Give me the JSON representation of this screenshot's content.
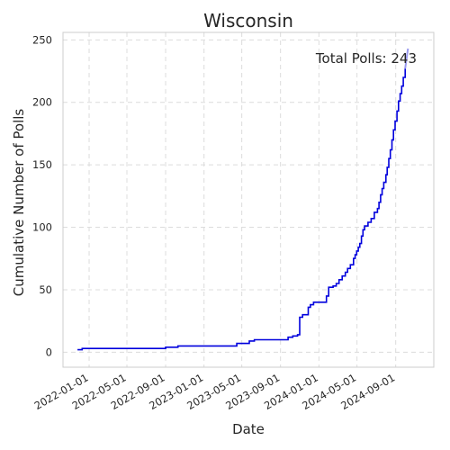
{
  "chart_data": {
    "type": "line",
    "title": "Wisconsin",
    "xlabel": "Date",
    "ylabel": "Cumulative Number of Polls",
    "annotation": "Total Polls: 243",
    "xlim": [
      "2021-10-10",
      "2024-12-31"
    ],
    "ylim": [
      -12,
      256
    ],
    "x_ticks": [
      "2022-01-01",
      "2022-05-01",
      "2022-09-01",
      "2023-01-01",
      "2023-05-01",
      "2023-09-01",
      "2024-01-01",
      "2024-05-01",
      "2024-09-01"
    ],
    "y_ticks": [
      0,
      50,
      100,
      150,
      200,
      250
    ],
    "grid": true,
    "line_color": "#0000dd",
    "tail_color": "#9999ee",
    "series": [
      {
        "points": [
          [
            "2021-11-25",
            2
          ],
          [
            "2021-12-10",
            3
          ],
          [
            "2022-08-10",
            3
          ],
          [
            "2022-09-01",
            4
          ],
          [
            "2022-10-05",
            4
          ],
          [
            "2022-10-10",
            5
          ],
          [
            "2023-04-10",
            5
          ],
          [
            "2023-04-15",
            7
          ],
          [
            "2023-05-20",
            7
          ],
          [
            "2023-05-25",
            9
          ],
          [
            "2023-06-10",
            10
          ],
          [
            "2023-09-20",
            10
          ],
          [
            "2023-09-25",
            12
          ],
          [
            "2023-10-10",
            13
          ],
          [
            "2023-10-25",
            14
          ],
          [
            "2023-11-01",
            28
          ],
          [
            "2023-11-10",
            30
          ],
          [
            "2023-11-28",
            36
          ],
          [
            "2023-12-05",
            38
          ],
          [
            "2023-12-15",
            40
          ],
          [
            "2024-01-05",
            40
          ],
          [
            "2024-01-15",
            40
          ],
          [
            "2024-01-25",
            45
          ],
          [
            "2024-02-01",
            52
          ],
          [
            "2024-02-15",
            53
          ],
          [
            "2024-02-25",
            55
          ],
          [
            "2024-03-05",
            58
          ],
          [
            "2024-03-15",
            61
          ],
          [
            "2024-03-25",
            64
          ],
          [
            "2024-04-01",
            67
          ],
          [
            "2024-04-10",
            70
          ],
          [
            "2024-04-20",
            75
          ],
          [
            "2024-04-25",
            78
          ],
          [
            "2024-04-30",
            81
          ],
          [
            "2024-05-05",
            84
          ],
          [
            "2024-05-10",
            87
          ],
          [
            "2024-05-15",
            93
          ],
          [
            "2024-05-20",
            98
          ],
          [
            "2024-05-25",
            101
          ],
          [
            "2024-06-05",
            104
          ],
          [
            "2024-06-15",
            107
          ],
          [
            "2024-06-25",
            112
          ],
          [
            "2024-07-05",
            115
          ],
          [
            "2024-07-10",
            120
          ],
          [
            "2024-07-15",
            126
          ],
          [
            "2024-07-20",
            131
          ],
          [
            "2024-07-25",
            136
          ],
          [
            "2024-08-01",
            142
          ],
          [
            "2024-08-05",
            148
          ],
          [
            "2024-08-10",
            155
          ],
          [
            "2024-08-15",
            162
          ],
          [
            "2024-08-20",
            170
          ],
          [
            "2024-08-25",
            178
          ],
          [
            "2024-08-30",
            185
          ],
          [
            "2024-09-05",
            193
          ],
          [
            "2024-09-10",
            201
          ],
          [
            "2024-09-15",
            207
          ],
          [
            "2024-09-20",
            213
          ],
          [
            "2024-09-25",
            220
          ],
          [
            "2024-10-01",
            227
          ]
        ],
        "tail": [
          [
            "2024-10-01",
            227
          ],
          [
            "2024-10-10",
            243
          ]
        ]
      }
    ]
  }
}
